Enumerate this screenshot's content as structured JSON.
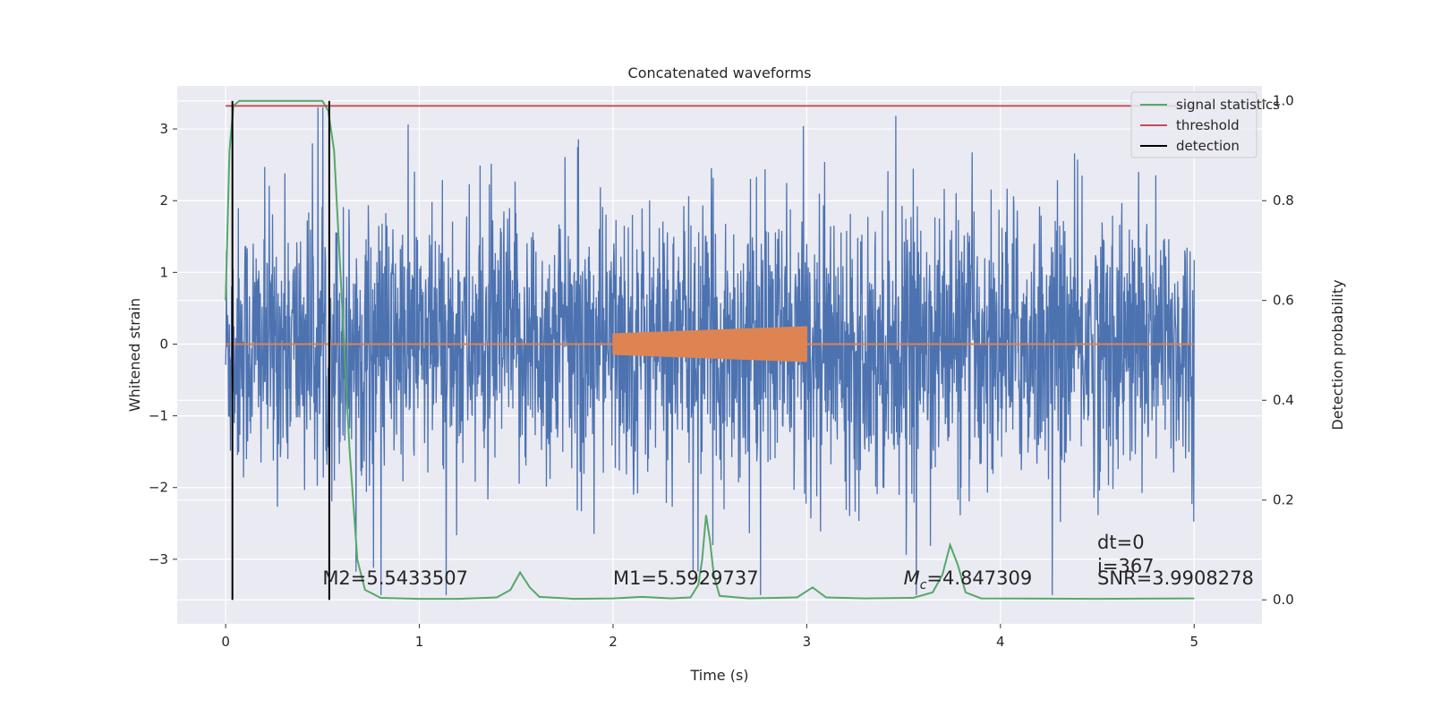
{
  "chart_data": {
    "type": "line",
    "title": "Concatenated waveforms",
    "xlabel": "Time (s)",
    "ylabel": "Whitened strain",
    "ylabel_right": "Detection probability",
    "xlim": [
      -0.25,
      5.35
    ],
    "ylim": [
      -3.9,
      3.6
    ],
    "ylim_right": [
      -0.048,
      1.03
    ],
    "xticks": [
      0,
      1,
      2,
      3,
      4,
      5
    ],
    "xtick_labels": [
      "0",
      "1",
      "2",
      "3",
      "4",
      "5"
    ],
    "yticks": [
      3,
      2,
      1,
      0,
      -1,
      -2,
      -3
    ],
    "ytick_labels": [
      "3",
      "2",
      "1",
      "0",
      "−1",
      "−2",
      "−3"
    ],
    "yticks_right": [
      1.0,
      0.8,
      0.6,
      0.4,
      0.2,
      0.0
    ],
    "ytick_right_labels": [
      "1.0",
      "0.8",
      "0.6",
      "0.4",
      "0.2",
      "0.0"
    ],
    "grid": true,
    "legend_position": "top-right",
    "legend": [
      {
        "name": "signal statistics",
        "color": "#55a868"
      },
      {
        "name": "threshold",
        "color": "#c44e52"
      },
      {
        "name": "detection",
        "color": "#000000"
      }
    ],
    "series": [
      {
        "name": "",
        "role": "whitened strain noise",
        "color": "#4c72b0",
        "x_range": [
          0,
          5
        ],
        "typical_amplitude": 1.1,
        "peak_amplitude": 3.3
      },
      {
        "name": "",
        "role": "injected chirp",
        "color": "#dd8452",
        "x_range": [
          2.0,
          3.0
        ],
        "amplitude_start": 0.15,
        "amplitude_end": 0.25
      },
      {
        "name": "signal statistics",
        "axis": "right",
        "color": "#55a868",
        "points": [
          [
            0.0,
            0.6
          ],
          [
            0.02,
            0.9
          ],
          [
            0.04,
            0.99
          ],
          [
            0.07,
            1.0
          ],
          [
            0.5,
            1.0
          ],
          [
            0.53,
            0.98
          ],
          [
            0.56,
            0.9
          ],
          [
            0.6,
            0.6
          ],
          [
            0.64,
            0.3
          ],
          [
            0.68,
            0.08
          ],
          [
            0.72,
            0.02
          ],
          [
            0.8,
            0.004
          ],
          [
            1.0,
            0.002
          ],
          [
            1.2,
            0.002
          ],
          [
            1.4,
            0.005
          ],
          [
            1.47,
            0.02
          ],
          [
            1.52,
            0.055
          ],
          [
            1.57,
            0.025
          ],
          [
            1.62,
            0.006
          ],
          [
            1.8,
            0.002
          ],
          [
            2.0,
            0.003
          ],
          [
            2.15,
            0.006
          ],
          [
            2.3,
            0.003
          ],
          [
            2.4,
            0.005
          ],
          [
            2.44,
            0.03
          ],
          [
            2.46,
            0.08
          ],
          [
            2.48,
            0.17
          ],
          [
            2.5,
            0.12
          ],
          [
            2.52,
            0.05
          ],
          [
            2.55,
            0.008
          ],
          [
            2.7,
            0.003
          ],
          [
            2.95,
            0.005
          ],
          [
            3.03,
            0.025
          ],
          [
            3.1,
            0.005
          ],
          [
            3.3,
            0.003
          ],
          [
            3.55,
            0.004
          ],
          [
            3.65,
            0.015
          ],
          [
            3.7,
            0.05
          ],
          [
            3.74,
            0.11
          ],
          [
            3.78,
            0.07
          ],
          [
            3.82,
            0.015
          ],
          [
            3.9,
            0.003
          ],
          [
            4.5,
            0.002
          ],
          [
            5.0,
            0.003
          ]
        ]
      },
      {
        "name": "threshold",
        "axis": "right",
        "color": "#c44e52",
        "x": [
          0,
          5
        ],
        "y": [
          0.99,
          0.99
        ]
      },
      {
        "name": "detection",
        "axis": "right",
        "color": "#000000",
        "type": "vlines",
        "x": [
          0.035,
          0.535
        ],
        "y_range": [
          0.0,
          1.0
        ]
      }
    ],
    "annotations": [
      {
        "text": "M2=5.5433507",
        "x": 0.5,
        "y": -3.35
      },
      {
        "text": "M1=5.5929737",
        "x": 2.0,
        "y": -3.35
      },
      {
        "text": "=4.847309",
        "prefix": "M",
        "subscript": "c",
        "x": 3.5,
        "y": -3.35
      },
      {
        "text": "dt=0",
        "x": 4.5,
        "y": -2.85
      },
      {
        "text": "i=367",
        "x": 4.5,
        "y": -3.18
      },
      {
        "text": "SNR=3.9908278",
        "x": 4.5,
        "y": -3.35
      }
    ]
  }
}
